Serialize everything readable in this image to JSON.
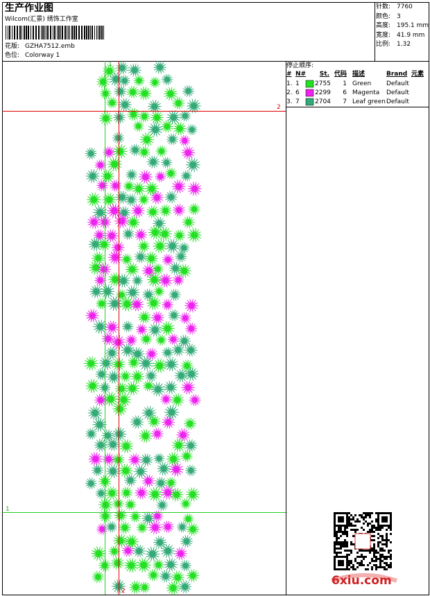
{
  "header": {
    "title": "生产作业图",
    "company": "Wilcom(汇景) 绣饰工作室",
    "design_label": "花版:",
    "design": "GZHA7512.emb",
    "colorway_label": "色位:",
    "colorway": "Colorway 1"
  },
  "stats": [
    {
      "label": "针数:",
      "value": "7760"
    },
    {
      "label": "颜色:",
      "value": "3"
    },
    {
      "label": "高度:",
      "value": "195.1 mm"
    },
    {
      "label": "宽度:",
      "value": "41.9 mm"
    },
    {
      "label": "比例:",
      "value": "1.32"
    }
  ],
  "stop_sequence": {
    "title": "停止顺序:",
    "columns": [
      "#",
      "N#",
      "St.",
      "代码",
      "描述",
      "Brand",
      "元素"
    ],
    "rows": [
      [
        "1.",
        "1",
        "2755",
        "1",
        "Green",
        "Default"
      ],
      [
        "2.",
        "6",
        "2299",
        "6",
        "Magenta",
        "Default"
      ],
      [
        "3.",
        "7",
        "2704",
        "7",
        "Leaf green",
        "Default"
      ]
    ]
  },
  "guides": {
    "v1": "1",
    "v2": "2",
    "h2": "2",
    "h1": "1"
  },
  "watermark": "6xiu.com"
}
